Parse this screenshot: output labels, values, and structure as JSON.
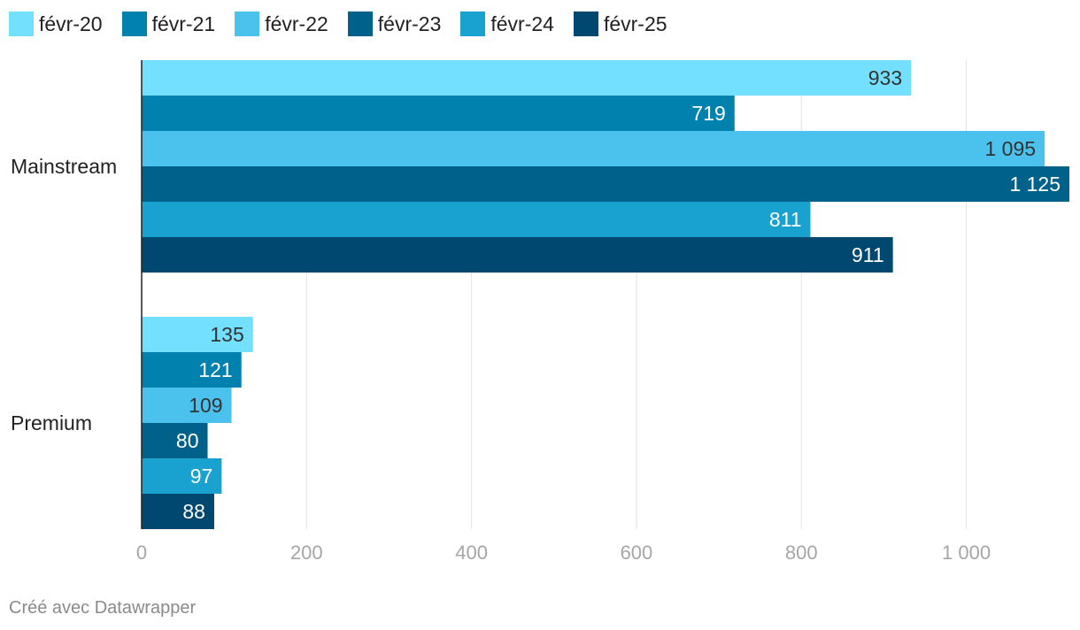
{
  "chart_data": {
    "type": "bar",
    "orientation": "horizontal",
    "categories": [
      "Mainstream",
      "Premium"
    ],
    "series": [
      {
        "name": "févr-20",
        "color": "#74e0ff",
        "values": [
          933,
          135
        ],
        "labels": [
          "933",
          "135"
        ]
      },
      {
        "name": "févr-21",
        "color": "#0081ae",
        "values": [
          719,
          121
        ],
        "labels": [
          "719",
          "121"
        ]
      },
      {
        "name": "févr-22",
        "color": "#4ac2ed",
        "values": [
          1095,
          109
        ],
        "labels": [
          "1 095",
          "109"
        ]
      },
      {
        "name": "févr-23",
        "color": "#00618a",
        "values": [
          1125,
          80
        ],
        "labels": [
          "1 125",
          "80"
        ]
      },
      {
        "name": "févr-24",
        "color": "#19a1d0",
        "values": [
          811,
          97
        ],
        "labels": [
          "811",
          "97"
        ]
      },
      {
        "name": "févr-25",
        "color": "#004870",
        "values": [
          911,
          88
        ],
        "labels": [
          "911",
          "88"
        ]
      }
    ],
    "xlim": [
      0,
      1125
    ],
    "xticks": [
      {
        "value": 0,
        "label": "0"
      },
      {
        "value": 200,
        "label": "200"
      },
      {
        "value": 400,
        "label": "400"
      },
      {
        "value": 600,
        "label": "600"
      },
      {
        "value": 800,
        "label": "800"
      },
      {
        "value": 1000,
        "label": "1 000"
      }
    ],
    "grid": true,
    "legend_position": "top-left"
  },
  "footer": {
    "credit": "Créé avec Datawrapper"
  }
}
